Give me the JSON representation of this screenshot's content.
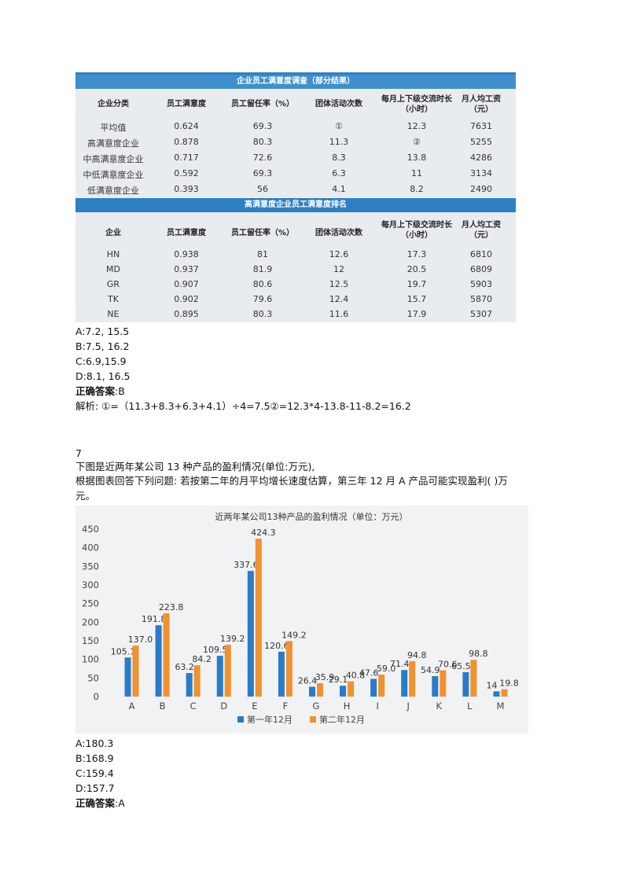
{
  "table1": {
    "title": "企业员工满意度调查（部分结果）",
    "headers": [
      "企业分类",
      "员工满意度",
      "员工留任率（%）",
      "团体活动次数",
      "每月上下级交流时长（小时）",
      "月人均工资（元）"
    ],
    "rows": [
      [
        "平均值",
        "0.624",
        "69.3",
        "①",
        "12.3",
        "7631"
      ],
      [
        "高满意度企业",
        "0.878",
        "80.3",
        "11.3",
        "②",
        "5255"
      ],
      [
        "中高满意度企业",
        "0.717",
        "72.6",
        "8.3",
        "13.8",
        "4286"
      ],
      [
        "中低满意度企业",
        "0.592",
        "69.3",
        "6.3",
        "11",
        "3134"
      ],
      [
        "低满意度企业",
        "0.393",
        "56",
        "4.1",
        "8.2",
        "2490"
      ]
    ]
  },
  "table2": {
    "title": "高满意度企业员工满意度排名",
    "headers": [
      "企业",
      "员工满意度",
      "员工留任率（%）",
      "团体活动次数",
      "每月上下级交流时长（小时）",
      "月人均工资（元）"
    ],
    "rows": [
      [
        "HN",
        "0.938",
        "81",
        "12.6",
        "17.3",
        "6810"
      ],
      [
        "MD",
        "0.937",
        "81.9",
        "12",
        "20.5",
        "6809"
      ],
      [
        "GR",
        "0.907",
        "80.6",
        "12.5",
        "19.7",
        "5903"
      ],
      [
        "TK",
        "0.902",
        "79.6",
        "12.4",
        "15.7",
        "5870"
      ],
      [
        "NE",
        "0.895",
        "80.3",
        "11.6",
        "17.9",
        "5307"
      ]
    ]
  },
  "q6": {
    "options": [
      "A:7.2, 15.5",
      "B:7.5, 16.2",
      "C:6.9,15.9",
      "D:8.1, 16.5"
    ],
    "answer_label": "正确答案",
    "answer_value": ":B",
    "analysis": "解析: ①=（11.3+8.3+6.3+4.1）÷4=7.5②=12.3*4-13.8-11-8.2=16.2"
  },
  "q7": {
    "number": "7",
    "text1": "下图是近两年某公司 13 种产品的盈利情况(单位:万元),",
    "text2": "根据图表回答下列问题: 若按第二年的月平均增长速度估算，第三年 12 月 A 产品可能实现盈利(  )万",
    "text3": "元。",
    "options": [
      "A:180.3",
      "B:168.9",
      "C:159.4",
      "D:157.7"
    ],
    "answer_label": "正确答案",
    "answer_value": ":A"
  },
  "chart_data": {
    "type": "bar",
    "title": "近两年某公司13种产品的盈利情况（单位：万元）",
    "categories": [
      "A",
      "B",
      "C",
      "D",
      "E",
      "F",
      "G",
      "H",
      "I",
      "J",
      "K",
      "L",
      "M"
    ],
    "series": [
      {
        "name": "第一年12月",
        "values": [
          105.1,
          191.8,
          63.2,
          109.5,
          337.6,
          120.6,
          26.4,
          29.1,
          47.6,
          71.4,
          54.9,
          65.5,
          14
        ]
      },
      {
        "name": "第二年12月",
        "values": [
          137.0,
          223.8,
          84.2,
          139.2,
          424.3,
          149.2,
          35.9,
          40.8,
          59.0,
          94.8,
          70.6,
          98.8,
          19.8
        ]
      }
    ],
    "series_labels": [
      [
        "105.1",
        "191.8",
        "63.2",
        "109.5",
        "337.6",
        "120.6",
        "26.4",
        "29.1",
        "47.6",
        "71.4",
        "54.9",
        "65.5",
        "14"
      ],
      [
        "137.0",
        "223.8",
        "84.2",
        "139.2",
        "424.3",
        "149.2",
        "35.9",
        "40.8",
        "59.0",
        "94.8",
        "70.6",
        "98.8",
        "19.8"
      ]
    ],
    "yticks": [
      "0",
      "50",
      "100",
      "150",
      "200",
      "250",
      "300",
      "350",
      "400",
      "450"
    ],
    "ylim": [
      0,
      450
    ],
    "colors": [
      "#2a7bc8",
      "#f0922e"
    ],
    "legend_position": "bottom"
  }
}
